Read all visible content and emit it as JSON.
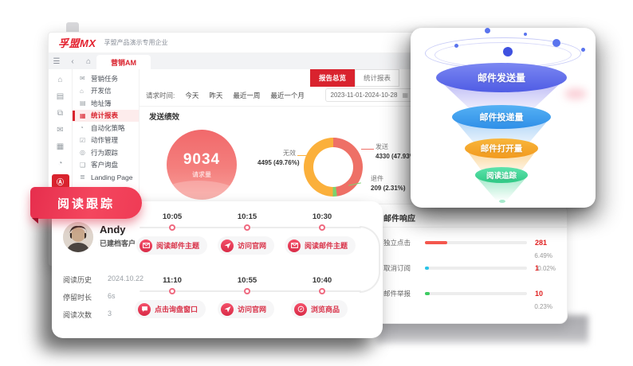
{
  "colors": {
    "brand_red": "#d9232e",
    "donut_send": "#ee7066",
    "donut_invalid": "#fbb03b",
    "donut_bounce": "#7dd36f",
    "bar_click": "#f4574d",
    "bar_unsub": "#29c3e8",
    "bar_report": "#3ecc62"
  },
  "app": {
    "logo": "孚盟MX",
    "org": "孚盟产品演示专用企业",
    "nav_tab": "营销AM"
  },
  "sidebar": {
    "items": [
      {
        "label": "营销任务"
      },
      {
        "label": "开发信"
      },
      {
        "label": "地址簿"
      },
      {
        "label": "统计报表"
      },
      {
        "label": "自动化策略"
      },
      {
        "label": "动作管理"
      },
      {
        "label": "行为跟踪"
      },
      {
        "label": "客户询盘"
      },
      {
        "label": "Landing Page"
      }
    ],
    "active": "统计报表"
  },
  "report": {
    "tabs": {
      "overview": "报告总览",
      "stats": "统计报表"
    },
    "filter": {
      "label": "请求时间:",
      "options": [
        "今天",
        "昨天",
        "最近一周",
        "最近一个月"
      ],
      "date_range": "2023-11-01-2024-10-28"
    },
    "section_title": "发送绩效",
    "gauge": {
      "value": "9034",
      "label": "请求量"
    },
    "donut": {
      "segments": [
        {
          "label": "发送",
          "text": "4330 (47.93%)",
          "pct": 47.93,
          "color": "#ee7066"
        },
        {
          "label": "退件",
          "text": "209 (2.31%)",
          "pct": 2.31,
          "color": "#7dd36f"
        },
        {
          "label": "无效",
          "text": "4495 (49.76%)",
          "pct": 49.76,
          "color": "#fbb03b"
        }
      ]
    }
  },
  "funnel": {
    "levels": [
      {
        "label": "邮件发送量",
        "top": "#7b87f2",
        "bottom": "#4f5ce4"
      },
      {
        "label": "邮件投递量",
        "top": "#55b1f4",
        "bottom": "#2f8fe8"
      },
      {
        "label": "邮件打开量",
        "top": "#f8b63c",
        "bottom": "#f29a1e"
      },
      {
        "label": "阅读追踪",
        "top": "#5fe3ad",
        "bottom": "#2fc985"
      }
    ]
  },
  "response_card": {
    "title": "邮件响应",
    "rows": [
      {
        "label": "独立点击",
        "value": "281",
        "pct": "6.49%",
        "color": "#f4574d",
        "bar_pct": 22
      },
      {
        "label": "取消订阅",
        "value": "1",
        "pct": "0.02%",
        "color": "#29c3e8",
        "bar_pct": 4
      },
      {
        "label": "邮件举报",
        "value": "10",
        "pct": "0.23%",
        "color": "#3ecc62",
        "bar_pct": 5
      }
    ]
  },
  "reading_card": {
    "ribbon": "阅读跟踪",
    "profile": {
      "name": "Andy",
      "type": "已建档客户"
    },
    "fields": [
      {
        "label": "阅读历史",
        "value": "2024.10.22"
      },
      {
        "label": "停留时长",
        "value": "6s"
      },
      {
        "label": "阅读次数",
        "value": "3"
      }
    ],
    "timeline_row1": [
      {
        "time": "10:05",
        "action": "阅读邮件主题",
        "icon": "mail"
      },
      {
        "time": "10:15",
        "action": "访问官网",
        "icon": "send"
      },
      {
        "time": "10:30",
        "action": "阅读邮件主题",
        "icon": "mail"
      }
    ],
    "timeline_row2": [
      {
        "time": "11:10",
        "action": "点击询盘窗口",
        "icon": "chat"
      },
      {
        "time": "10:55",
        "action": "访问官网",
        "icon": "send"
      },
      {
        "time": "10:40",
        "action": "浏览商品",
        "icon": "browse"
      }
    ]
  },
  "chart_data": [
    {
      "type": "pie",
      "title": "发送绩效",
      "categories": [
        "发送",
        "退件",
        "无效"
      ],
      "values": [
        4330,
        209,
        4495
      ],
      "percents": [
        47.93,
        2.31,
        49.76
      ],
      "total_requests": 9034
    },
    {
      "type": "funnel",
      "categories": [
        "邮件发送量",
        "邮件投递量",
        "邮件打开量",
        "阅读追踪"
      ]
    },
    {
      "type": "bar",
      "categories": [
        "独立点击",
        "取消订阅",
        "邮件举报"
      ],
      "values": [
        281,
        1,
        10
      ],
      "percents": [
        6.49,
        0.02,
        0.23
      ],
      "title": "邮件响应"
    }
  ]
}
